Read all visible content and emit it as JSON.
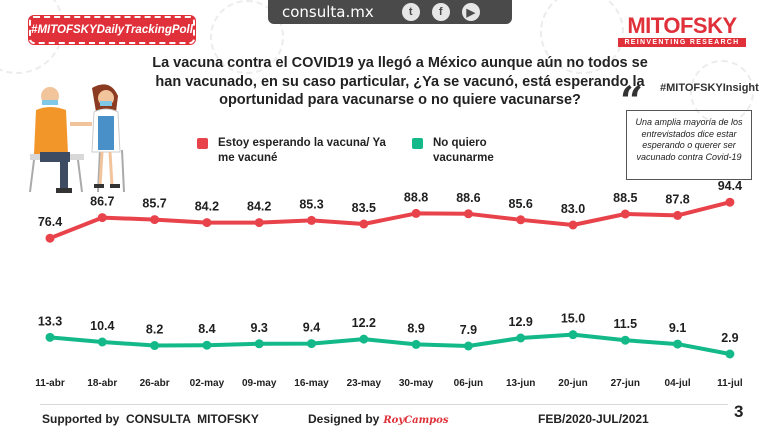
{
  "header": {
    "badge": "#MITOFSKYDailyTrackingPoll",
    "site": "consulta.mx",
    "social": [
      {
        "icon": "twitter-icon",
        "glyph": "t"
      },
      {
        "icon": "facebook-icon",
        "glyph": "f"
      },
      {
        "icon": "youtube-icon",
        "glyph": "▶"
      }
    ],
    "brand": "MITOFSKY",
    "brand_tag": "REINVENTING RESEARCH"
  },
  "insight": {
    "tag": "#MITOFSKYInsight",
    "text": "Una amplia mayoría de los entrevistados dice estar esperando o querer ser vacunado contra Covid-19"
  },
  "footer": {
    "supported": "Supported by  CONSULTA  MITOFSKY",
    "designed": "Designed by",
    "signature": "RoyCampos",
    "date_range": "FEB/2020-JUL/2021",
    "page": "3"
  },
  "chart_data": {
    "type": "line",
    "title": "La vacuna contra el COVID19 ya llegó a México aunque aún no todos se han vacunado, en su caso particular, ¿Ya se vacunó, está esperando la oportunidad para vacunarse o no quiere vacunarse?",
    "categories": [
      "11-abr",
      "18-abr",
      "26-abr",
      "02-may",
      "09-may",
      "16-may",
      "23-may",
      "30-may",
      "06-jun",
      "13-jun",
      "20-jun",
      "27-jun",
      "04-jul",
      "11-jul"
    ],
    "series": [
      {
        "name": "Estoy esperando la vacuna/ Ya me vacuné",
        "color": "#e8434b",
        "values": [
          76.4,
          86.7,
          85.7,
          84.2,
          84.2,
          85.3,
          83.5,
          88.8,
          88.6,
          85.6,
          83.0,
          88.5,
          87.8,
          94.4
        ]
      },
      {
        "name": "No quiero vacunarme",
        "color": "#14b98a",
        "values": [
          13.3,
          10.4,
          8.2,
          8.4,
          9.3,
          9.4,
          12.2,
          8.9,
          7.9,
          12.9,
          15.0,
          11.5,
          9.1,
          2.9
        ]
      }
    ],
    "xlabel": "",
    "ylabel": "",
    "grid": false,
    "legend": "top"
  }
}
